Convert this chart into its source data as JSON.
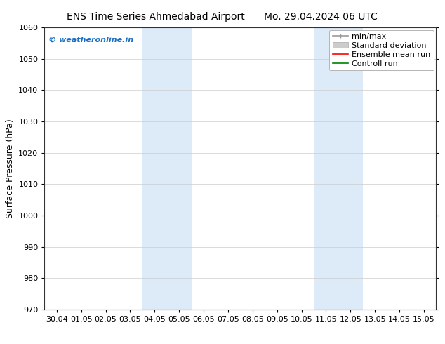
{
  "title_left": "ENS Time Series Ahmedabad Airport",
  "title_right": "Mo. 29.04.2024 06 UTC",
  "ylabel": "Surface Pressure (hPa)",
  "ylim": [
    970,
    1060
  ],
  "yticks": [
    970,
    980,
    990,
    1000,
    1010,
    1020,
    1030,
    1040,
    1050,
    1060
  ],
  "xtick_labels": [
    "30.04",
    "01.05",
    "02.05",
    "03.05",
    "04.05",
    "05.05",
    "06.05",
    "07.05",
    "08.05",
    "09.05",
    "10.05",
    "11.05",
    "12.05",
    "13.05",
    "14.05",
    "15.05"
  ],
  "shaded_regions": [
    {
      "xstart": 4,
      "xend": 6
    },
    {
      "xstart": 11,
      "xend": 13
    }
  ],
  "shaded_color": "#ddeaf7",
  "watermark_text": "© weatheronline.in",
  "watermark_color": "#1a6fc4",
  "grid_color": "#cccccc",
  "background_color": "#ffffff",
  "font_size_title": 10,
  "font_size_tick": 8,
  "font_size_ylabel": 9,
  "font_size_legend": 8,
  "font_size_watermark": 8
}
